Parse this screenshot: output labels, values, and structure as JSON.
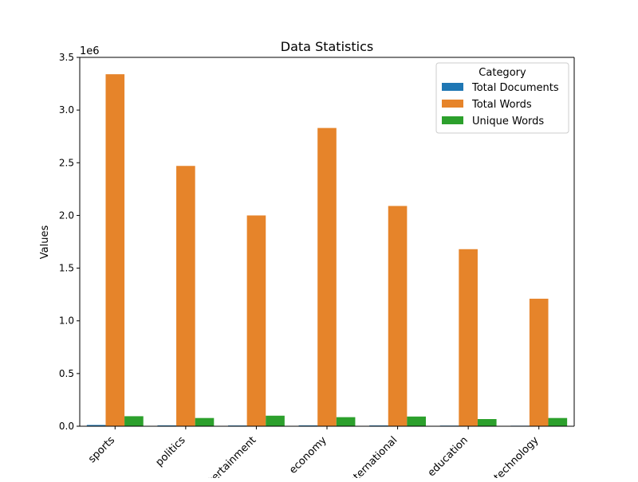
{
  "chart_data": {
    "type": "bar",
    "title": "Data Statistics",
    "xlabel": "",
    "ylabel": "Values",
    "y_offset_label": "1e6",
    "ylim": [
      0,
      3500000
    ],
    "yticks": [
      0,
      500000,
      1000000,
      1500000,
      2000000,
      2500000,
      3000000,
      3500000
    ],
    "ytick_labels": [
      "0.0",
      "0.5",
      "1.0",
      "1.5",
      "2.0",
      "2.5",
      "3.0",
      "3.5"
    ],
    "grid": false,
    "categories": [
      "sports",
      "politics",
      "entertainment",
      "economy",
      "international",
      "education",
      "technology"
    ],
    "legend": {
      "title": "Category",
      "placement": "top-right"
    },
    "series": [
      {
        "name": "Total Documents",
        "color": "#1f77b4",
        "values": [
          12000,
          8000,
          7000,
          8000,
          7500,
          6000,
          5000
        ]
      },
      {
        "name": "Total Words",
        "color": "#e6842a",
        "values": [
          3340000,
          2470000,
          2000000,
          2830000,
          2090000,
          1680000,
          1210000
        ]
      },
      {
        "name": "Unique Words",
        "color": "#2ca02c",
        "values": [
          95000,
          78000,
          100000,
          86000,
          92000,
          68000,
          78000
        ]
      }
    ]
  }
}
